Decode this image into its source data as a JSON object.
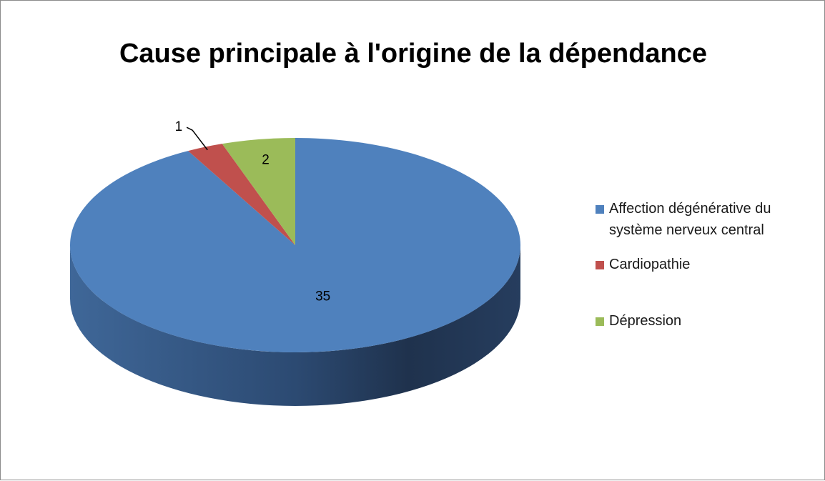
{
  "chart_data": {
    "type": "pie",
    "title": "Cause principale à l'origine de la dépendance",
    "categories": [
      "Affection dégénérative du système nerveux central",
      "Cardiopathie",
      "Dépression"
    ],
    "values": [
      35,
      1,
      2
    ],
    "colors": [
      "#4f81bd",
      "#c0504d",
      "#9bbb59"
    ],
    "legend": "right"
  }
}
